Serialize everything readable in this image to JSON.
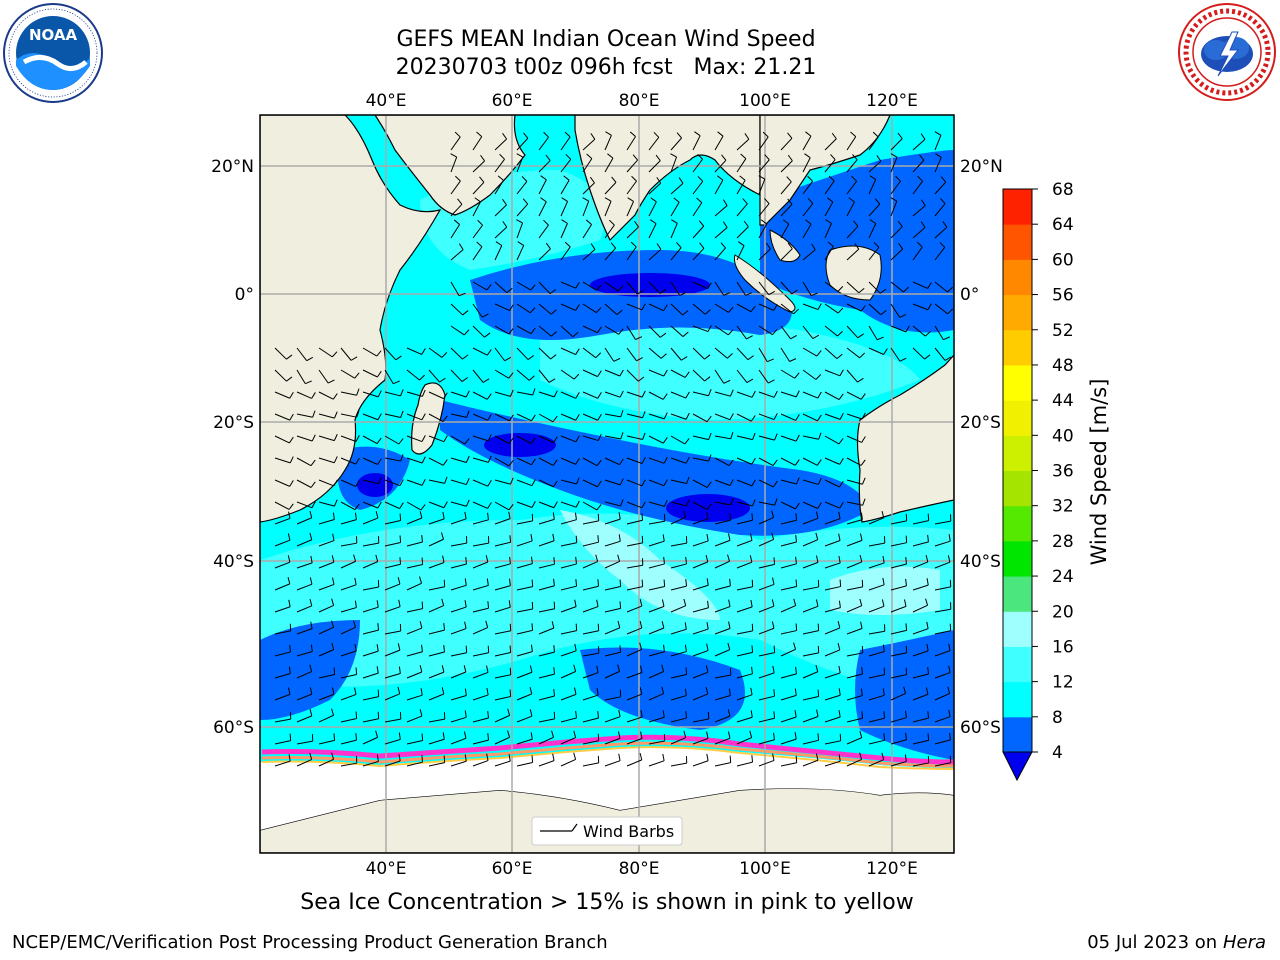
{
  "title": {
    "line1": "GEFS MEAN Indian Ocean Wind Speed",
    "line2": "20230703 t00z 096h fcst   Max: 21.21"
  },
  "logos": {
    "left": {
      "icon": "noaa-logo",
      "text": "NOAA",
      "ring_text": "NATIONAL OCEANIC AND ATMOSPHERIC ADMINISTRATION · U.S. DEPARTMENT OF COMMERCE"
    },
    "right": {
      "icon": "nws-logo",
      "ring_text": "NATIONAL WEATHER SERVICE"
    }
  },
  "map": {
    "lon_ticks": [
      "40°E",
      "60°E",
      "80°E",
      "100°E",
      "120°E"
    ],
    "lon_values": [
      40,
      60,
      80,
      100,
      120
    ],
    "lat_ticks_left": [
      "20°N",
      "0°",
      "20°S",
      "40°S",
      "60°S"
    ],
    "lat_ticks_right": [
      "20°N",
      "0°",
      "20°S",
      "40°S",
      "60°S"
    ],
    "lat_values": [
      20,
      0,
      -20,
      -40,
      -60
    ],
    "extent": {
      "lon_min": 20,
      "lon_max": 130,
      "lat_min": -80,
      "lat_max": 28
    },
    "projection": "Mercator",
    "gridlines": true,
    "legend": {
      "label": "Wind Barbs",
      "position": "bottom-center"
    }
  },
  "colorbar": {
    "label": "Wind Speed [m/s]",
    "ticks": [
      "68",
      "64",
      "60",
      "56",
      "52",
      "48",
      "44",
      "40",
      "36",
      "32",
      "28",
      "24",
      "20",
      "16",
      "12",
      "8",
      "4"
    ],
    "levels": [
      4,
      8,
      12,
      16,
      20,
      24,
      28,
      32,
      36,
      40,
      44,
      48,
      52,
      56,
      60,
      64,
      68
    ],
    "colors": [
      "#0066ff",
      "#00ffff",
      "#3fffff",
      "#9fffff",
      "#4ce67f",
      "#00e600",
      "#55e800",
      "#a5e400",
      "#ccf000",
      "#f0f000",
      "#ffff00",
      "#ffcc00",
      "#ffaa00",
      "#ff8800",
      "#ff5500",
      "#ff2200"
    ],
    "under_color": "#0000ee",
    "extend": "min"
  },
  "colors": {
    "land": "#efeedf",
    "sea_ice": "#ffffff",
    "ice_edge": [
      "#ff33cc",
      "#ff9966",
      "#ffcc44"
    ]
  },
  "caption": "Sea Ice Concentration > 15% is shown in pink to yellow",
  "footer": {
    "left": "NCEP/EMC/Verification Post Processing Product Generation Branch",
    "right_date": "05 Jul 2023 on ",
    "right_host": "Hera"
  }
}
